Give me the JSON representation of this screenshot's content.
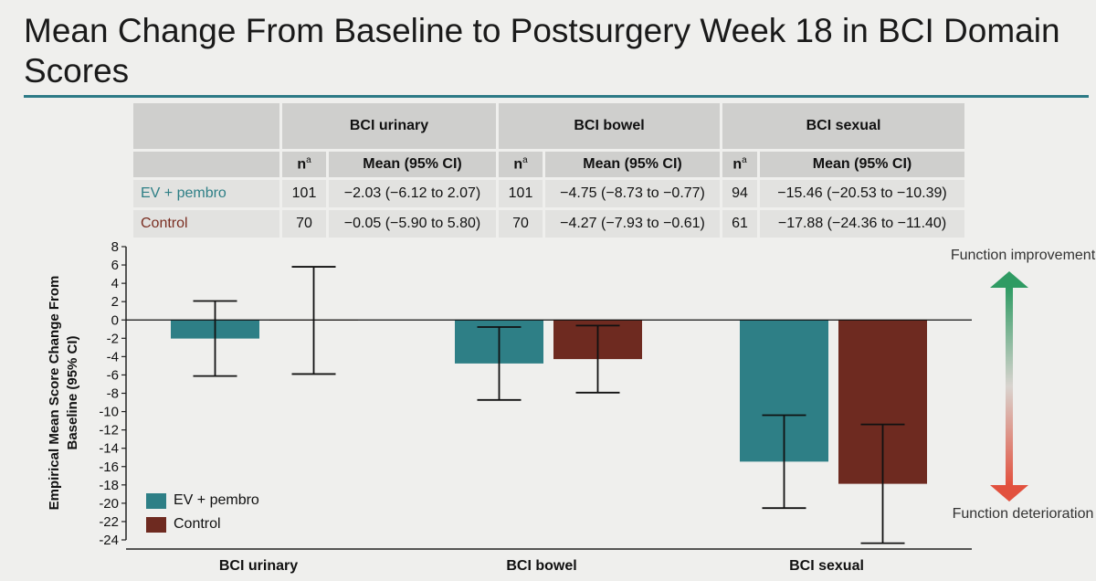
{
  "title": "Mean Change From Baseline to Postsurgery Week 18 in BCI Domain Scores",
  "colors": {
    "accent": "#2c7a86",
    "ev": "#2e7f86",
    "control": "#6e2a20",
    "up": "#2f9b63",
    "down": "#e2513e"
  },
  "table": {
    "groups": [
      "BCI urinary",
      "BCI bowel",
      "BCI sexual"
    ],
    "n_label": "n",
    "n_sup": "a",
    "mean_label": "Mean (95% CI)",
    "rows": [
      {
        "label": "EV + pembro",
        "cells": [
          {
            "n": "101",
            "mean": "−2.03 (−6.12 to 2.07)"
          },
          {
            "n": "101",
            "mean": "−4.75 (−8.73 to −0.77)"
          },
          {
            "n": "94",
            "mean": "−15.46 (−20.53 to −10.39)"
          }
        ]
      },
      {
        "label": "Control",
        "cells": [
          {
            "n": "70",
            "mean": "−0.05 (−5.90 to 5.80)"
          },
          {
            "n": "70",
            "mean": "−4.27 (−7.93 to −0.61)"
          },
          {
            "n": "61",
            "mean": "−17.88 (−24.36 to −11.40)"
          }
        ]
      }
    ]
  },
  "annotations": {
    "improvement": "Function improvement",
    "deterioration": "Function deterioration"
  },
  "chart_data": {
    "type": "bar",
    "ylabel": "Empirical Mean Score Change From Baseline (95% CI)",
    "xlabel": "",
    "categories": [
      "BCI urinary",
      "BCI bowel",
      "BCI sexual"
    ],
    "ylim": [
      -24,
      8
    ],
    "yticks": [
      8,
      6,
      4,
      2,
      0,
      -2,
      -4,
      -6,
      -8,
      -10,
      -12,
      -14,
      -16,
      -18,
      -20,
      -22,
      -24
    ],
    "series": [
      {
        "name": "EV + pembro",
        "color": "#2e7f86",
        "values": [
          -2.03,
          -4.75,
          -15.46
        ],
        "ci_low": [
          -6.12,
          -8.73,
          -20.53
        ],
        "ci_high": [
          2.07,
          -0.77,
          -10.39
        ]
      },
      {
        "name": "Control",
        "color": "#6e2a20",
        "values": [
          -0.05,
          -4.27,
          -17.88
        ],
        "ci_low": [
          -5.9,
          -7.93,
          -24.36
        ],
        "ci_high": [
          5.8,
          -0.61,
          -11.4
        ]
      }
    ],
    "legend": "bottom-left",
    "grid": false
  }
}
